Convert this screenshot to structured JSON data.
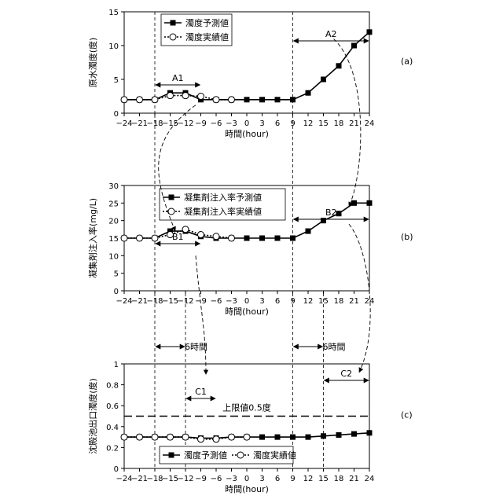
{
  "chart_data": [
    {
      "id": "a",
      "type": "line",
      "panel_label": "(a)",
      "ylabel": "原水濁度(度)",
      "xlabel": "時間(hour)",
      "xlim": [
        -24,
        24
      ],
      "ylim": [
        0,
        15
      ],
      "xticks": [
        -24,
        -21,
        -18,
        -15,
        -12,
        -9,
        -6,
        -3,
        0,
        3,
        6,
        9,
        12,
        15,
        18,
        21,
        24
      ],
      "yticks": [
        0,
        5,
        10,
        15
      ],
      "legend_position": "top-center",
      "series": [
        {
          "name": "濁度予測値",
          "marker": "filled-square",
          "line": "solid",
          "points": [
            [
              -24,
              2
            ],
            [
              -21,
              2
            ],
            [
              -18,
              2
            ],
            [
              -15,
              3
            ],
            [
              -12,
              3
            ],
            [
              -9,
              2
            ],
            [
              -6,
              2
            ],
            [
              -3,
              2
            ],
            [
              0,
              2
            ],
            [
              3,
              2
            ],
            [
              6,
              2
            ],
            [
              9,
              2
            ],
            [
              12,
              3
            ],
            [
              15,
              5
            ],
            [
              18,
              7
            ],
            [
              21,
              10
            ],
            [
              24,
              12
            ]
          ]
        },
        {
          "name": "濁度実績値",
          "marker": "open-circle",
          "line": "dotted",
          "points": [
            [
              -24,
              2
            ],
            [
              -21,
              2
            ],
            [
              -18,
              2
            ],
            [
              -15,
              2.6
            ],
            [
              -12,
              2.6
            ],
            [
              -9,
              2.5
            ],
            [
              -6,
              2
            ],
            [
              -3,
              2
            ]
          ]
        }
      ],
      "annotations": [
        {
          "label": "A1",
          "from_x": -18,
          "to_x": -9
        },
        {
          "label": "A2",
          "from_x": 9,
          "to_x": 24
        }
      ],
      "vlines": [
        -18,
        9
      ]
    },
    {
      "id": "b",
      "type": "line",
      "panel_label": "(b)",
      "ylabel": "凝集剤注入率(mg/L)",
      "xlabel": "時間(hour)",
      "xlim": [
        -24,
        24
      ],
      "ylim": [
        0,
        30
      ],
      "xticks": [
        -24,
        -21,
        -18,
        -15,
        -12,
        -9,
        -6,
        -3,
        0,
        3,
        6,
        9,
        12,
        15,
        18,
        21,
        24
      ],
      "yticks": [
        0,
        5,
        10,
        15,
        20,
        25,
        30
      ],
      "legend_position": "top-center",
      "series": [
        {
          "name": "凝集剤注入率予測値",
          "marker": "filled-square",
          "line": "solid",
          "points": [
            [
              -24,
              15
            ],
            [
              -21,
              15
            ],
            [
              -18,
              15
            ],
            [
              -15,
              17
            ],
            [
              -12,
              17
            ],
            [
              -9,
              15.5
            ],
            [
              -6,
              15
            ],
            [
              -3,
              15
            ],
            [
              0,
              15
            ],
            [
              3,
              15
            ],
            [
              6,
              15
            ],
            [
              9,
              15
            ],
            [
              12,
              17
            ],
            [
              15,
              20
            ],
            [
              18,
              22
            ],
            [
              21,
              25
            ],
            [
              24,
              25
            ]
          ]
        },
        {
          "name": "凝集剤注入率実績値",
          "marker": "open-circle",
          "line": "dotted",
          "points": [
            [
              -24,
              15
            ],
            [
              -21,
              15
            ],
            [
              -18,
              15
            ],
            [
              -15,
              16
            ],
            [
              -12,
              17.5
            ],
            [
              -9,
              16
            ],
            [
              -6,
              15.5
            ],
            [
              -3,
              15
            ]
          ]
        }
      ],
      "annotations": [
        {
          "label": "B1",
          "from_x": -18,
          "to_x": -9
        },
        {
          "label": "B2",
          "from_x": 9,
          "to_x": 24
        }
      ],
      "vlines": [
        -18,
        9
      ]
    },
    {
      "id": "c",
      "type": "line",
      "panel_label": "(c)",
      "ylabel": "沈殿池出口濁度(度)",
      "xlabel": "時間(hour)",
      "xlim": [
        -24,
        24
      ],
      "ylim": [
        0,
        1
      ],
      "xticks": [
        -24,
        -21,
        -18,
        -15,
        -12,
        -9,
        -6,
        -3,
        0,
        3,
        6,
        9,
        12,
        15,
        18,
        21,
        24
      ],
      "yticks": [
        0,
        0.2,
        0.4,
        0.6,
        0.8,
        1
      ],
      "legend_position": "bottom-center",
      "series": [
        {
          "name": "濁度予測値",
          "marker": "filled-square",
          "line": "solid",
          "points": [
            [
              -24,
              0.3
            ],
            [
              -21,
              0.3
            ],
            [
              -18,
              0.3
            ],
            [
              -15,
              0.3
            ],
            [
              -12,
              0.3
            ],
            [
              -9,
              0.29
            ],
            [
              -6,
              0.29
            ],
            [
              -3,
              0.3
            ],
            [
              0,
              0.3
            ],
            [
              3,
              0.3
            ],
            [
              6,
              0.3
            ],
            [
              9,
              0.3
            ],
            [
              12,
              0.3
            ],
            [
              15,
              0.31
            ],
            [
              18,
              0.32
            ],
            [
              21,
              0.33
            ],
            [
              24,
              0.34
            ]
          ]
        },
        {
          "name": "濁度実績値",
          "marker": "open-circle",
          "line": "dotted",
          "points": [
            [
              -24,
              0.3
            ],
            [
              -21,
              0.3
            ],
            [
              -18,
              0.3
            ],
            [
              -15,
              0.3
            ],
            [
              -12,
              0.3
            ],
            [
              -9,
              0.28
            ],
            [
              -6,
              0.28
            ],
            [
              -3,
              0.3
            ],
            [
              0,
              0.3
            ]
          ]
        }
      ],
      "threshold": {
        "value": 0.5,
        "label": "上限値0.5度"
      },
      "annotations": [
        {
          "label": "6時間",
          "from_x": -18,
          "to_x": -12,
          "outside": true
        },
        {
          "label": "6時間",
          "from_x": 9,
          "to_x": 15,
          "outside": true
        },
        {
          "label": "C1",
          "from_x": -12,
          "to_x": -6
        },
        {
          "label": "C2",
          "from_x": 15,
          "to_x": 24
        }
      ],
      "vlines": [
        -18,
        -12,
        9,
        15
      ]
    }
  ]
}
